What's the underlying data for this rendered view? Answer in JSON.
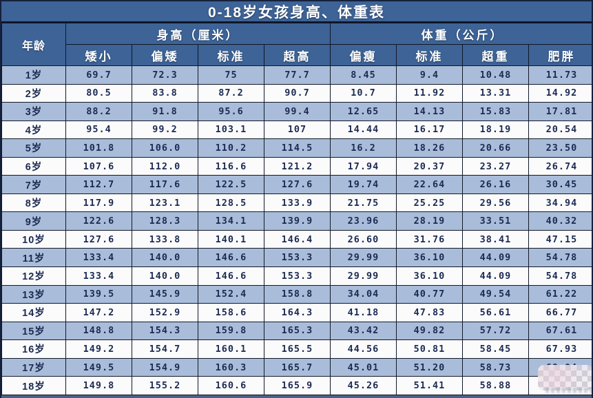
{
  "chart_data": {
    "type": "table",
    "title": "0-18岁女孩身高、体重表",
    "age_header": "年龄",
    "groups": [
      {
        "label": "身高（厘米）",
        "columns": [
          "矮小",
          "偏矮",
          "标准",
          "超高"
        ]
      },
      {
        "label": "体重（公斤）",
        "columns": [
          "偏瘦",
          "标准",
          "超重",
          "肥胖"
        ]
      }
    ],
    "rows": [
      {
        "age": "1岁",
        "values": [
          "69.7",
          "72.3",
          "75",
          "77.7",
          "8.45",
          "9.4",
          "10.48",
          "11.73"
        ]
      },
      {
        "age": "2岁",
        "values": [
          "80.5",
          "83.8",
          "87.2",
          "90.7",
          "10.7",
          "11.92",
          "13.31",
          "14.92"
        ]
      },
      {
        "age": "3岁",
        "values": [
          "88.2",
          "91.8",
          "95.6",
          "99.4",
          "12.65",
          "14.13",
          "15.83",
          "17.81"
        ]
      },
      {
        "age": "4岁",
        "values": [
          "95.4",
          "99.2",
          "103.1",
          "107",
          "14.44",
          "16.17",
          "18.19",
          "20.54"
        ]
      },
      {
        "age": "5岁",
        "values": [
          "101.8",
          "106.0",
          "110.2",
          "114.5",
          "16.2",
          "18.26",
          "20.66",
          "23.50"
        ]
      },
      {
        "age": "6岁",
        "values": [
          "107.6",
          "112.0",
          "116.6",
          "121.2",
          "17.94",
          "20.37",
          "23.27",
          "26.74"
        ]
      },
      {
        "age": "7岁",
        "values": [
          "112.7",
          "117.6",
          "122.5",
          "127.6",
          "19.74",
          "22.64",
          "26.16",
          "30.45"
        ]
      },
      {
        "age": "8岁",
        "values": [
          "117.9",
          "123.1",
          "128.5",
          "133.9",
          "21.75",
          "25.25",
          "29.56",
          "34.94"
        ]
      },
      {
        "age": "9岁",
        "values": [
          "122.6",
          "128.3",
          "134.1",
          "139.9",
          "23.96",
          "28.19",
          "33.51",
          "40.32"
        ]
      },
      {
        "age": "10岁",
        "values": [
          "127.6",
          "133.8",
          "140.1",
          "146.4",
          "26.60",
          "31.76",
          "38.41",
          "47.15"
        ]
      },
      {
        "age": "11岁",
        "values": [
          "133.4",
          "140.0",
          "146.6",
          "153.3",
          "29.99",
          "36.10",
          "44.09",
          "54.78"
        ]
      },
      {
        "age": "12岁",
        "values": [
          "133.4",
          "140.0",
          "146.6",
          "153.3",
          "29.99",
          "36.10",
          "44.09",
          "54.78"
        ]
      },
      {
        "age": "13岁",
        "values": [
          "139.5",
          "145.9",
          "152.4",
          "158.8",
          "34.04",
          "40.77",
          "49.54",
          "61.22"
        ]
      },
      {
        "age": "14岁",
        "values": [
          "147.2",
          "152.9",
          "158.6",
          "164.3",
          "41.18",
          "47.83",
          "56.61",
          "66.77"
        ]
      },
      {
        "age": "15岁",
        "values": [
          "148.8",
          "154.3",
          "159.8",
          "165.3",
          "43.42",
          "49.82",
          "57.72",
          "67.61"
        ]
      },
      {
        "age": "16岁",
        "values": [
          "149.2",
          "154.7",
          "160.1",
          "165.5",
          "44.56",
          "50.81",
          "58.45",
          "67.93"
        ]
      },
      {
        "age": "17岁",
        "values": [
          "149.5",
          "154.9",
          "160.3",
          "165.7",
          "45.01",
          "51.20",
          "58.73",
          "68.04"
        ]
      },
      {
        "age": "18岁",
        "values": [
          "149.8",
          "155.2",
          "160.6",
          "165.9",
          "45.26",
          "51.41",
          "58.88",
          ""
        ]
      }
    ]
  },
  "colors": {
    "header_bg": "#3d6397",
    "row_alt_bg": "#a9bdda",
    "row_bg": "#fbfbfc",
    "border": "#101726",
    "header_text": "#ffffff",
    "cell_text": "#1c2a52",
    "bottom_strip": "#46618c"
  }
}
